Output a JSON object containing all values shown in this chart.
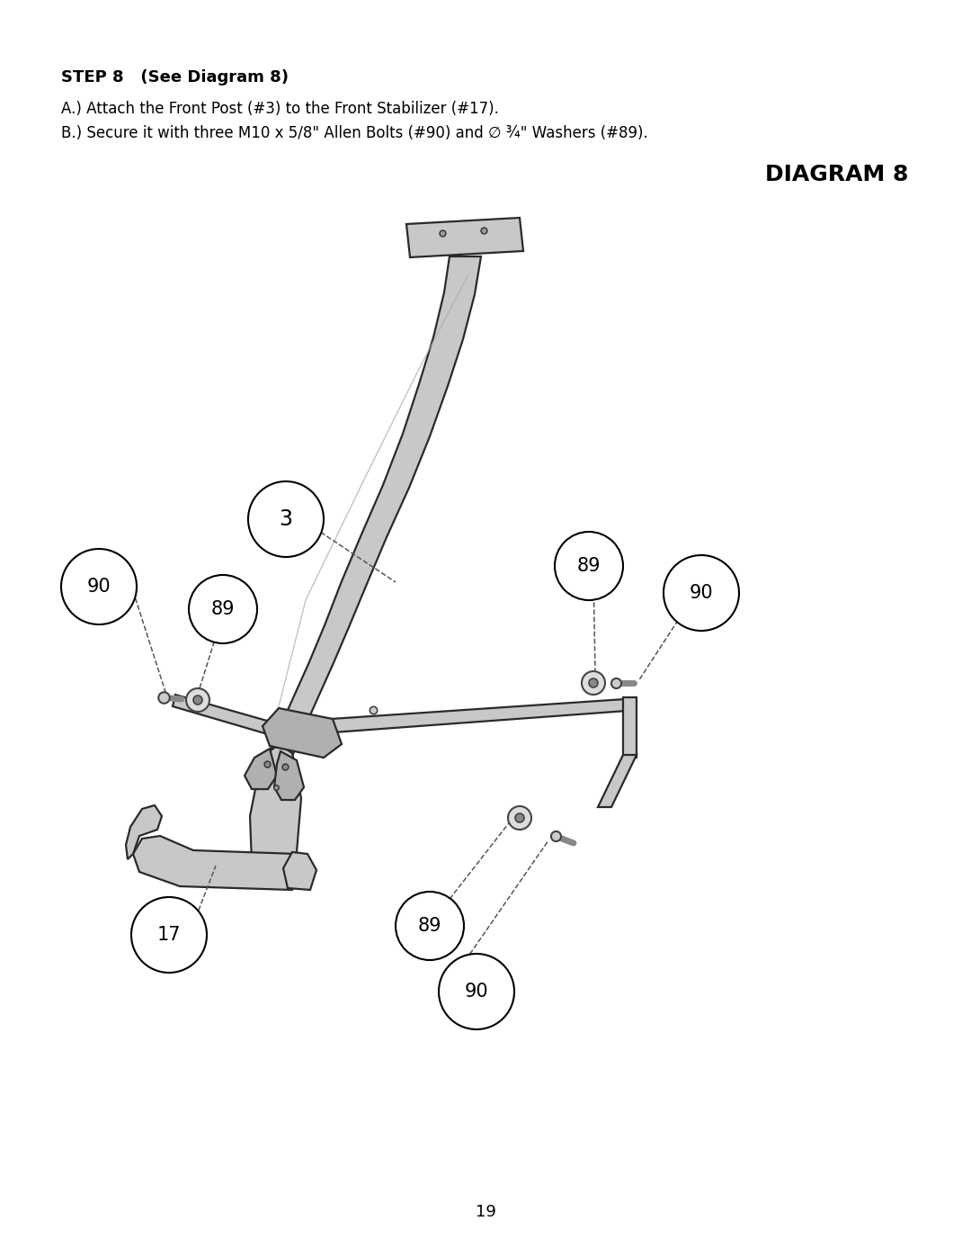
{
  "page_num": "19",
  "title": "DIAGRAM 8",
  "step_header": "STEP 8   (See Diagram 8)",
  "line_a": "A.) Attach the Front Post (#3) to the Front Stabilizer (#17).",
  "line_b": "B.) Secure it with three M10 x 5/8\" Allen Bolts (#90) and ∅ ¾\" Washers (#89).",
  "bg_color": "#ffffff",
  "text_color": "#000000",
  "part_color": "#2a2a2a",
  "fill_light": "#c8c8c8",
  "fill_medium": "#b0b0b0",
  "fill_dark": "#888888"
}
